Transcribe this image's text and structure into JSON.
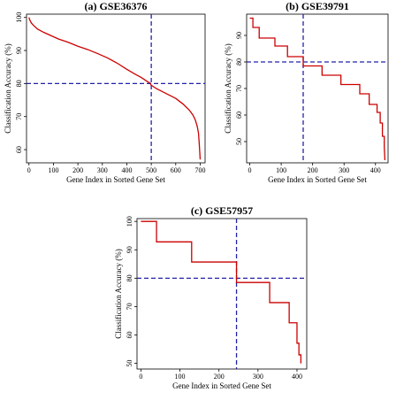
{
  "chart_data": [
    {
      "id": "a",
      "type": "line",
      "title": "(a) GSE36376",
      "xlabel": "Gene Index in Sorted Gene Set",
      "ylabel": "Classification Accuracy (%)",
      "xlim": [
        -10,
        720
      ],
      "ylim": [
        56,
        101
      ],
      "xticks": [
        0,
        100,
        200,
        300,
        400,
        500,
        600,
        700
      ],
      "yticks": [
        60,
        70,
        80,
        90,
        100
      ],
      "grid": false,
      "line_color": "#cc0000",
      "ref_color": "#2222aa",
      "ref_x": 500,
      "ref_y": 80,
      "series": [
        {
          "x": [
            0,
            2,
            5,
            10,
            20,
            35,
            60,
            90,
            120,
            160,
            200,
            240,
            280,
            320,
            360,
            400,
            430,
            460,
            480,
            495,
            500,
            520,
            560,
            600,
            630,
            655,
            670,
            680,
            688,
            693,
            696,
            698,
            700
          ],
          "y": [
            100,
            99.5,
            99,
            98.3,
            97.5,
            96.5,
            95.5,
            94.5,
            93.5,
            92.5,
            91.3,
            90.3,
            89.1,
            87.8,
            86.2,
            84.3,
            83,
            81.8,
            80.8,
            80.1,
            79.5,
            78.5,
            77,
            75.5,
            73.8,
            72,
            70.5,
            69,
            67,
            65,
            62,
            59.5,
            57
          ]
        }
      ]
    },
    {
      "id": "b",
      "type": "line",
      "title": "(b) GSE39791",
      "xlabel": "Gene Index in Sorted Gene Set",
      "ylabel": "Classification Accuracy (%)",
      "xlim": [
        -10,
        440
      ],
      "ylim": [
        42,
        98
      ],
      "xticks": [
        0,
        100,
        200,
        300,
        400
      ],
      "yticks": [
        50,
        60,
        70,
        80,
        90
      ],
      "grid": false,
      "line_color": "#cc0000",
      "ref_color": "#2222aa",
      "ref_x": 170,
      "ref_y": 80,
      "series": [
        {
          "x": [
            0,
            10,
            10,
            30,
            30,
            80,
            80,
            120,
            120,
            170,
            170,
            230,
            230,
            290,
            290,
            350,
            350,
            380,
            380,
            405,
            405,
            415,
            415,
            422,
            422,
            428,
            428,
            430
          ],
          "y": [
            96.5,
            96.5,
            93,
            93,
            89,
            89,
            86,
            86,
            82,
            82,
            78.5,
            78.5,
            75,
            75,
            71.5,
            71.5,
            68,
            68,
            64,
            64,
            61,
            61,
            57,
            57,
            52,
            52,
            48,
            43
          ]
        }
      ]
    },
    {
      "id": "c",
      "type": "line",
      "title": "(c) GSE57957",
      "xlabel": "Gene Index in Sorted Gene Set",
      "ylabel": "Classification Accuracy (%)",
      "xlim": [
        -10,
        425
      ],
      "ylim": [
        48,
        101
      ],
      "xticks": [
        0,
        100,
        200,
        300,
        400
      ],
      "yticks": [
        50,
        60,
        70,
        80,
        90,
        100
      ],
      "grid": false,
      "line_color": "#cc0000",
      "ref_color": "#2222aa",
      "ref_x": 245,
      "ref_y": 80,
      "series": [
        {
          "x": [
            0,
            40,
            40,
            130,
            130,
            245,
            245,
            330,
            330,
            380,
            380,
            400,
            400,
            405,
            405,
            410,
            410
          ],
          "y": [
            100,
            100,
            92.8,
            92.8,
            85.7,
            85.7,
            78.5,
            78.5,
            71.4,
            71.4,
            64.3,
            64.3,
            57.1,
            57.1,
            53,
            53,
            50
          ]
        }
      ]
    }
  ]
}
